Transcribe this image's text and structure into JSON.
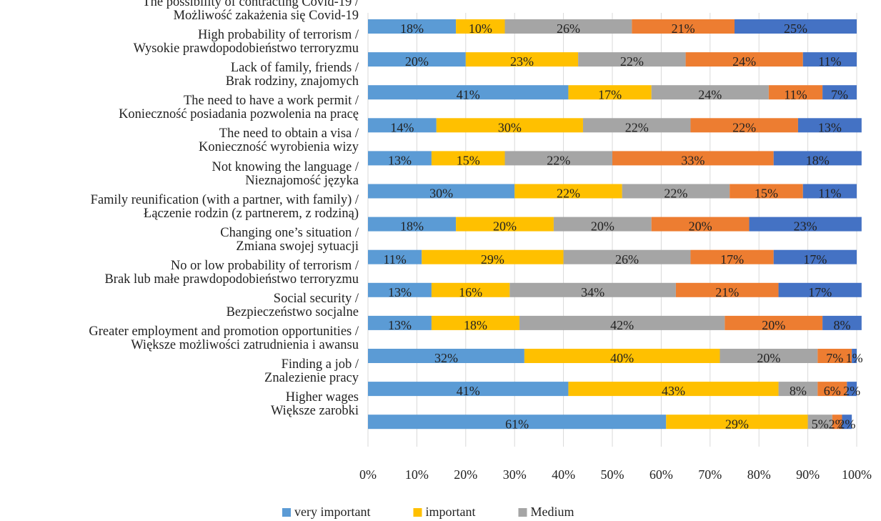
{
  "chart_data": {
    "type": "stacked-bar-horizontal",
    "categories": [
      "The possibility of contracting Covid-19 /\nMożliwość zakażenia się Covid-19",
      "High probability of terrorism /\nWysokie prawdopodobieństwo terroryzmu",
      "Lack of family, friends /\nBrak rodziny, znajomych",
      "The need to have a work permit /\nKonieczność posiadania pozwolenia na pracę",
      "The need to obtain a visa /\nKonieczność wyrobienia wizy",
      "Not knowing the language /\nNieznajomość języka",
      "Family reunification (with a partner, with family) /\nŁączenie rodzin (z partnerem, z rodziną)",
      "Changing one’s situation /\nZmiana swojej sytuacji",
      "No or low probability of terrorism /\nBrak lub małe prawdopodobieństwo terroryzmu",
      "Social security /\nBezpieczeństwo socjalne",
      "Greater employment and promotion opportunities /\nWiększe możliwości zatrudnienia i awansu",
      "Finding a job /\nZnalezienie pracy",
      "Higher wages\nWiększe zarobki"
    ],
    "series": [
      {
        "name": "very important",
        "color": "#5b9bd5",
        "values": [
          18,
          20,
          41,
          14,
          13,
          30,
          18,
          11,
          13,
          13,
          32,
          41,
          61
        ],
        "value_labels": [
          "18%",
          "20%",
          "41%",
          "14%",
          "13%",
          "30%",
          "18%",
          "11%",
          "13%",
          "13%",
          "32%",
          "41%",
          "61%"
        ]
      },
      {
        "name": "important",
        "color": "#ffc000",
        "values": [
          10,
          23,
          17,
          30,
          15,
          22,
          20,
          29,
          16,
          18,
          40,
          43,
          29
        ],
        "value_labels": [
          "10%",
          "23%",
          "17%",
          "30%",
          "15%",
          "22%",
          "20%",
          "29%",
          "16%",
          "18%",
          "40%",
          "43%",
          "29%"
        ]
      },
      {
        "name": "Medium",
        "color": "#a5a5a5",
        "values": [
          26,
          22,
          24,
          22,
          22,
          22,
          20,
          26,
          34,
          42,
          20,
          8,
          5
        ],
        "value_labels": [
          "26%",
          "22%",
          "24%",
          "22%",
          "22%",
          "22%",
          "20%",
          "26%",
          "34%",
          "42%",
          "20%",
          "8%",
          "5%"
        ]
      },
      {
        "color": "#ed7d31",
        "values": [
          21,
          24,
          11,
          22,
          33,
          15,
          20,
          17,
          21,
          20,
          7,
          6,
          2
        ],
        "value_labels": [
          "21%",
          "24%",
          "11%",
          "22%",
          "33%",
          "15%",
          "20%",
          "17%",
          "21%",
          "20%",
          "7%",
          "6%",
          "2%"
        ]
      },
      {
        "color": "#4472c4",
        "values": [
          25,
          11,
          7,
          13,
          18,
          11,
          23,
          17,
          17,
          8,
          1,
          2,
          2
        ],
        "value_labels": [
          "25%",
          "11%",
          "7%",
          "13%",
          "18%",
          "11%",
          "23%",
          "17%",
          "17%",
          "8%",
          "1%",
          "2%",
          "2%"
        ]
      }
    ],
    "xlim": [
      0,
      100
    ],
    "xticks": [
      {
        "value": 0,
        "label": "0%"
      },
      {
        "value": 10,
        "label": "10%"
      },
      {
        "value": 20,
        "label": "20%"
      },
      {
        "value": 30,
        "label": "30%"
      },
      {
        "value": 40,
        "label": "40%"
      },
      {
        "value": 50,
        "label": "50%"
      },
      {
        "value": 60,
        "label": "60%"
      },
      {
        "value": 70,
        "label": "70%"
      },
      {
        "value": 80,
        "label": "80%"
      },
      {
        "value": 90,
        "label": "90%"
      },
      {
        "value": 100,
        "label": "100%"
      }
    ],
    "grid": true,
    "legend": "bottom"
  }
}
